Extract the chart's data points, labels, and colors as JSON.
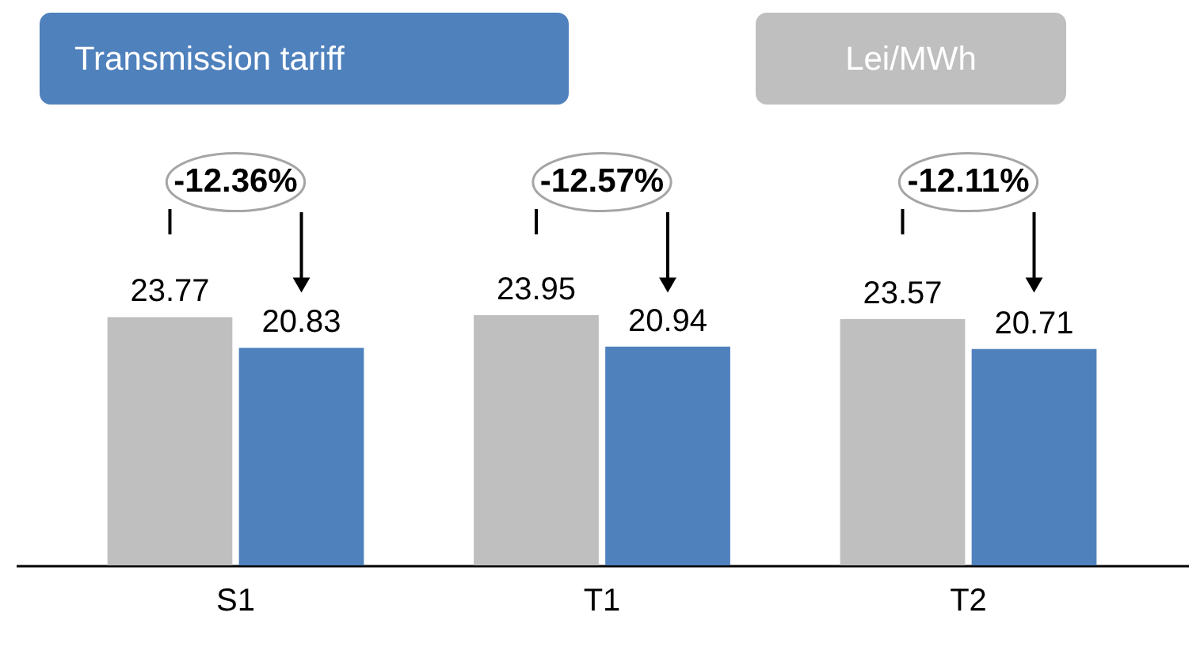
{
  "chart_data": {
    "type": "bar",
    "title": "Transmission tariff",
    "subtitle": "Lei/MWh",
    "categories": [
      "S1",
      "T1",
      "T2"
    ],
    "series": [
      {
        "color": "#bfbfbf",
        "values": [
          23.77,
          23.95,
          23.57
        ]
      },
      {
        "color": "#4f81bd",
        "values": [
          20.83,
          20.94,
          20.71
        ]
      }
    ],
    "data_labels": true,
    "annotations": [
      "-12.36%",
      "-12.57%",
      "-12.11%"
    ]
  }
}
